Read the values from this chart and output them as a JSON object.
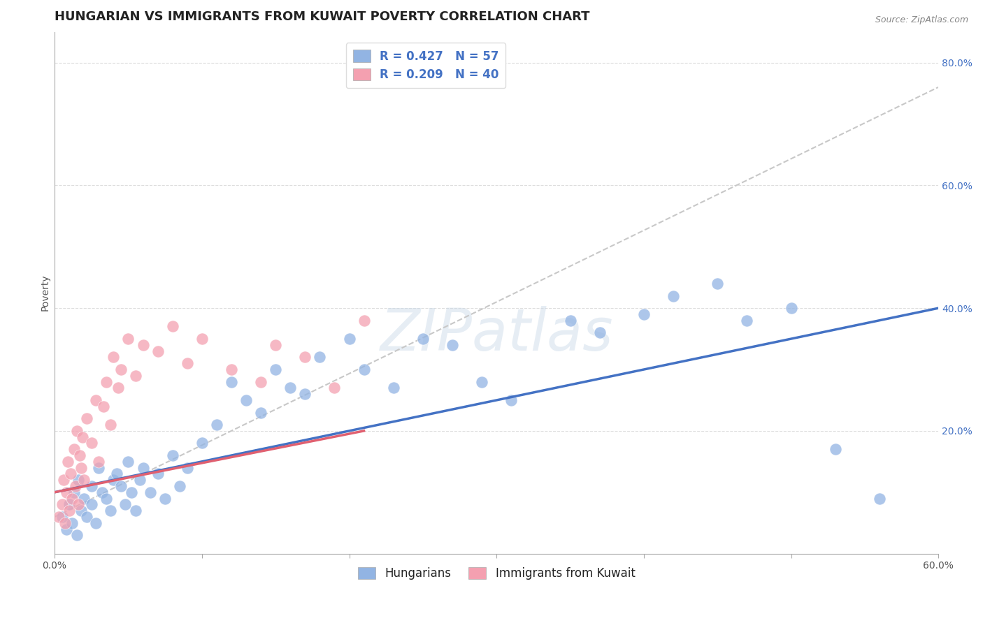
{
  "title": "HUNGARIAN VS IMMIGRANTS FROM KUWAIT POVERTY CORRELATION CHART",
  "source": "Source: ZipAtlas.com",
  "ylabel": "Poverty",
  "xlim": [
    0.0,
    0.6
  ],
  "ylim": [
    0.0,
    0.85
  ],
  "x_ticks": [
    0.0,
    0.1,
    0.2,
    0.3,
    0.4,
    0.5,
    0.6
  ],
  "x_tick_labels": [
    "0.0%",
    "",
    "",
    "",
    "",
    "",
    "60.0%"
  ],
  "y_ticks": [
    0.0,
    0.2,
    0.4,
    0.6,
    0.8
  ],
  "y_tick_labels": [
    "",
    "20.0%",
    "40.0%",
    "60.0%",
    "80.0%"
  ],
  "legend_blue_label": "R = 0.427   N = 57",
  "legend_pink_label": "R = 0.209   N = 40",
  "legend_bottom_blue": "Hungarians",
  "legend_bottom_pink": "Immigrants from Kuwait",
  "blue_color": "#92b4e3",
  "pink_color": "#f4a0b0",
  "blue_line_color": "#4472c4",
  "pink_line_color": "#e06070",
  "trendline_gray_color": "#c8c8c8",
  "background_color": "#ffffff",
  "grid_color": "#dddddd",
  "blue_scatter_x": [
    0.005,
    0.008,
    0.01,
    0.012,
    0.013,
    0.015,
    0.016,
    0.018,
    0.02,
    0.022,
    0.025,
    0.025,
    0.028,
    0.03,
    0.032,
    0.035,
    0.038,
    0.04,
    0.042,
    0.045,
    0.048,
    0.05,
    0.052,
    0.055,
    0.058,
    0.06,
    0.065,
    0.07,
    0.075,
    0.08,
    0.085,
    0.09,
    0.1,
    0.11,
    0.12,
    0.13,
    0.14,
    0.15,
    0.16,
    0.17,
    0.18,
    0.2,
    0.21,
    0.23,
    0.25,
    0.27,
    0.29,
    0.31,
    0.35,
    0.37,
    0.4,
    0.42,
    0.45,
    0.47,
    0.5,
    0.53,
    0.56
  ],
  "blue_scatter_y": [
    0.06,
    0.04,
    0.08,
    0.05,
    0.1,
    0.03,
    0.12,
    0.07,
    0.09,
    0.06,
    0.11,
    0.08,
    0.05,
    0.14,
    0.1,
    0.09,
    0.07,
    0.12,
    0.13,
    0.11,
    0.08,
    0.15,
    0.1,
    0.07,
    0.12,
    0.14,
    0.1,
    0.13,
    0.09,
    0.16,
    0.11,
    0.14,
    0.18,
    0.21,
    0.28,
    0.25,
    0.23,
    0.3,
    0.27,
    0.26,
    0.32,
    0.35,
    0.3,
    0.27,
    0.35,
    0.34,
    0.28,
    0.25,
    0.38,
    0.36,
    0.39,
    0.42,
    0.44,
    0.38,
    0.4,
    0.17,
    0.09
  ],
  "pink_scatter_x": [
    0.003,
    0.005,
    0.006,
    0.007,
    0.008,
    0.009,
    0.01,
    0.011,
    0.012,
    0.013,
    0.014,
    0.015,
    0.016,
    0.017,
    0.018,
    0.019,
    0.02,
    0.022,
    0.025,
    0.028,
    0.03,
    0.033,
    0.035,
    0.038,
    0.04,
    0.043,
    0.045,
    0.05,
    0.055,
    0.06,
    0.07,
    0.08,
    0.09,
    0.1,
    0.12,
    0.14,
    0.15,
    0.17,
    0.19,
    0.21
  ],
  "pink_scatter_y": [
    0.06,
    0.08,
    0.12,
    0.05,
    0.1,
    0.15,
    0.07,
    0.13,
    0.09,
    0.17,
    0.11,
    0.2,
    0.08,
    0.16,
    0.14,
    0.19,
    0.12,
    0.22,
    0.18,
    0.25,
    0.15,
    0.24,
    0.28,
    0.21,
    0.32,
    0.27,
    0.3,
    0.35,
    0.29,
    0.34,
    0.33,
    0.37,
    0.31,
    0.35,
    0.3,
    0.28,
    0.34,
    0.32,
    0.27,
    0.38
  ],
  "blue_line_x0": 0.0,
  "blue_line_x1": 0.6,
  "blue_line_y0": 0.1,
  "blue_line_y1": 0.4,
  "pink_line_x0": 0.0,
  "pink_line_x1": 0.21,
  "pink_line_y0": 0.1,
  "pink_line_y1": 0.2,
  "gray_line_x0": 0.0,
  "gray_line_x1": 0.6,
  "gray_line_y0": 0.06,
  "gray_line_y1": 0.76,
  "title_fontsize": 13,
  "axis_label_fontsize": 10,
  "tick_fontsize": 10,
  "legend_fontsize": 12,
  "watermark_text": "ZIPatlas",
  "watermark_color": "#c8d8e8",
  "watermark_fontsize": 60,
  "watermark_alpha": 0.45
}
